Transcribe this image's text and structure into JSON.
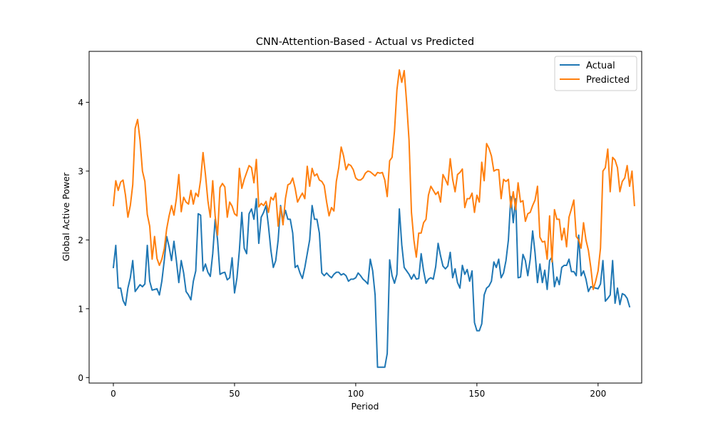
{
  "chart_data": {
    "type": "line",
    "title": "CNN-Attention-Based - Actual vs Predicted",
    "xlabel": "Period",
    "ylabel": "Global Active Power",
    "xlim": [
      -10,
      218
    ],
    "ylim": [
      -0.08,
      4.74
    ],
    "xticks": [
      0,
      50,
      100,
      150,
      200
    ],
    "yticks": [
      0,
      1,
      2,
      3,
      4
    ],
    "grid": false,
    "legend_position": "top-right",
    "series": [
      {
        "name": "Actual",
        "color": "#1f77b4",
        "values": [
          1.6,
          1.92,
          1.3,
          1.3,
          1.12,
          1.05,
          1.3,
          1.45,
          1.7,
          1.25,
          1.3,
          1.35,
          1.32,
          1.36,
          1.92,
          1.4,
          1.27,
          1.28,
          1.29,
          1.2,
          1.4,
          1.7,
          2.05,
          1.9,
          1.7,
          1.98,
          1.7,
          1.38,
          1.7,
          1.52,
          1.25,
          1.2,
          1.13,
          1.4,
          1.55,
          2.38,
          2.36,
          1.55,
          1.65,
          1.53,
          1.47,
          1.8,
          2.3,
          2.0,
          1.5,
          1.52,
          1.53,
          1.42,
          1.45,
          1.74,
          1.23,
          1.45,
          1.85,
          2.4,
          1.88,
          1.8,
          2.38,
          2.45,
          2.3,
          2.6,
          1.95,
          2.33,
          2.4,
          2.5,
          2.2,
          1.85,
          1.6,
          1.7,
          2.0,
          2.5,
          2.28,
          2.43,
          2.3,
          2.3,
          2.1,
          1.6,
          1.63,
          1.52,
          1.44,
          1.6,
          1.8,
          2.0,
          2.5,
          2.3,
          2.3,
          2.1,
          1.52,
          1.48,
          1.52,
          1.48,
          1.45,
          1.5,
          1.53,
          1.53,
          1.49,
          1.51,
          1.48,
          1.4,
          1.43,
          1.43,
          1.45,
          1.52,
          1.48,
          1.43,
          1.4,
          1.36,
          1.72,
          1.55,
          1.2,
          0.15,
          0.15,
          0.15,
          0.15,
          0.35,
          1.71,
          1.48,
          1.37,
          1.5,
          2.45,
          1.93,
          1.6,
          1.55,
          1.5,
          1.43,
          1.5,
          1.43,
          1.44,
          1.8,
          1.55,
          1.37,
          1.43,
          1.45,
          1.43,
          1.61,
          1.95,
          1.77,
          1.62,
          1.58,
          1.62,
          1.82,
          1.45,
          1.58,
          1.38,
          1.3,
          1.63,
          1.5,
          1.57,
          1.4,
          1.55,
          0.8,
          0.68,
          0.68,
          0.78,
          1.2,
          1.3,
          1.33,
          1.4,
          1.68,
          1.6,
          1.72,
          1.45,
          1.52,
          1.7,
          2.0,
          2.63,
          2.25,
          2.6,
          1.45,
          1.46,
          1.79,
          1.7,
          1.48,
          1.72,
          2.13,
          1.81,
          1.38,
          1.65,
          1.38,
          1.56,
          1.28,
          1.7,
          1.75,
          1.32,
          1.46,
          1.35,
          1.6,
          1.63,
          1.63,
          1.72,
          1.54,
          1.54,
          1.48,
          2.07,
          1.48,
          1.55,
          1.43,
          1.25,
          1.32,
          1.31,
          1.3,
          1.29,
          1.36,
          1.7,
          1.11,
          1.15,
          1.2,
          1.7,
          1.08,
          1.3,
          1.06,
          1.22,
          1.2,
          1.15,
          1.03
        ]
      },
      {
        "name": "Predicted",
        "color": "#ff7f0e",
        "values": [
          2.5,
          2.86,
          2.72,
          2.84,
          2.87,
          2.65,
          2.33,
          2.5,
          2.8,
          3.62,
          3.75,
          3.45,
          3.0,
          2.85,
          2.37,
          2.2,
          1.72,
          2.05,
          1.73,
          1.63,
          1.72,
          1.87,
          2.16,
          2.35,
          2.5,
          2.36,
          2.6,
          2.95,
          2.41,
          2.62,
          2.55,
          2.52,
          2.72,
          2.52,
          2.68,
          2.63,
          2.87,
          3.27,
          2.95,
          2.57,
          2.33,
          2.86,
          2.35,
          2.07,
          2.76,
          2.82,
          2.77,
          2.33,
          2.55,
          2.49,
          2.38,
          2.35,
          3.04,
          2.75,
          2.88,
          2.98,
          3.08,
          3.05,
          2.83,
          3.17,
          2.48,
          2.53,
          2.5,
          2.56,
          2.4,
          2.62,
          2.58,
          2.68,
          2.2,
          2.48,
          2.22,
          2.6,
          2.8,
          2.82,
          2.9,
          2.75,
          2.55,
          2.62,
          2.68,
          2.6,
          3.07,
          2.78,
          3.04,
          2.93,
          2.96,
          2.87,
          2.85,
          2.79,
          2.55,
          2.35,
          2.47,
          2.42,
          2.85,
          3.05,
          3.35,
          3.22,
          3.02,
          3.1,
          3.08,
          3.02,
          2.9,
          2.87,
          2.87,
          2.9,
          2.97,
          3.0,
          2.99,
          2.96,
          2.93,
          2.98,
          2.97,
          2.98,
          2.87,
          2.63,
          3.15,
          3.2,
          3.58,
          4.18,
          4.47,
          4.29,
          4.46,
          4.0,
          3.45,
          2.4,
          2.0,
          1.75,
          2.1,
          2.1,
          2.25,
          2.3,
          2.65,
          2.78,
          2.72,
          2.66,
          2.7,
          2.55,
          2.95,
          2.88,
          2.8,
          3.18,
          2.88,
          2.7,
          2.95,
          2.98,
          3.03,
          2.47,
          2.6,
          2.6,
          2.68,
          2.4,
          2.65,
          2.55,
          3.13,
          2.86,
          3.4,
          3.33,
          3.22,
          3.0,
          3.02,
          3.02,
          2.6,
          2.88,
          2.85,
          2.88,
          2.47,
          2.7,
          2.44,
          2.83,
          2.55,
          2.57,
          2.27,
          2.38,
          2.4,
          2.5,
          2.58,
          2.78,
          2.04,
          1.97,
          1.98,
          1.72,
          2.35,
          1.68,
          2.44,
          2.3,
          2.3,
          2.0,
          2.17,
          1.9,
          2.33,
          2.45,
          2.58,
          2.05,
          2.0,
          1.88,
          2.25,
          2.0,
          1.85,
          1.6,
          1.28,
          1.4,
          1.55,
          1.88,
          3.0,
          3.05,
          3.32,
          2.7,
          3.2,
          3.16,
          3.05,
          2.7,
          2.85,
          2.9,
          3.08,
          2.78,
          3.0,
          2.5
        ]
      }
    ]
  }
}
